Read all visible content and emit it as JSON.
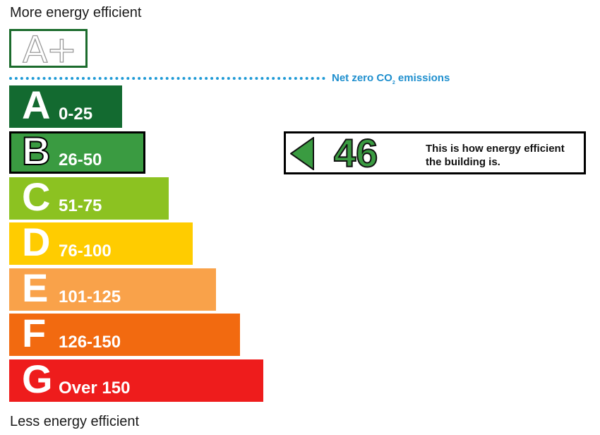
{
  "labels": {
    "top": "More energy efficient",
    "bottom": "Less energy efficient"
  },
  "aplus": {
    "label": "A+"
  },
  "net_zero": {
    "text_before": "Net zero CO",
    "subscript": "2",
    "text_after": " emissions",
    "color": "#1f9ad6"
  },
  "bands": [
    {
      "letter": "A",
      "range": "0-25",
      "color": "#136a30"
    },
    {
      "letter": "B",
      "range": "26-50",
      "color": "#3a9b41",
      "current": true
    },
    {
      "letter": "C",
      "range": "51-75",
      "color": "#8cc221"
    },
    {
      "letter": "D",
      "range": "76-100",
      "color": "#ffcc00"
    },
    {
      "letter": "E",
      "range": "101-125",
      "color": "#f9a24a"
    },
    {
      "letter": "F",
      "range": "126-150",
      "color": "#f26a10"
    },
    {
      "letter": "G",
      "range": "Over 150",
      "color": "#ee1c1c"
    }
  ],
  "rating": {
    "value": "46",
    "text": "This is how energy efficient the building is.",
    "color": "#3a9b41"
  }
}
